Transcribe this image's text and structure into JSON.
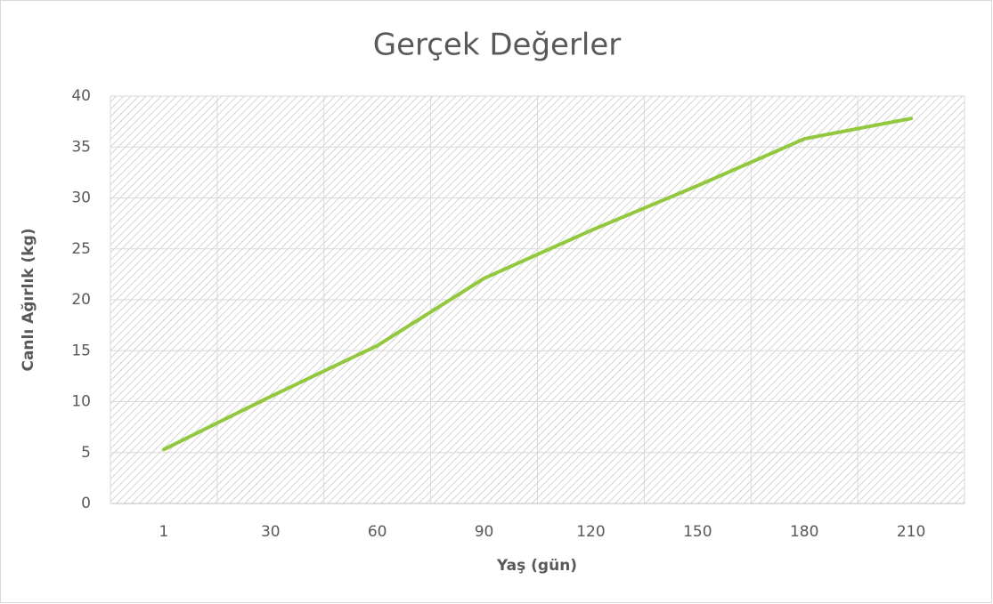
{
  "chart_data": {
    "type": "line",
    "title": "Gerçek Değerler",
    "x_label": "Yaş (gün)",
    "y_label": "Canlı Ağırlık (kg)",
    "categories": [
      "1",
      "30",
      "60",
      "90",
      "120",
      "150",
      "180",
      "210"
    ],
    "values": [
      5.3,
      10.5,
      15.5,
      22.1,
      26.8,
      31.2,
      35.8,
      37.8
    ],
    "color": "#92c83e",
    "ylim": [
      0,
      40
    ],
    "yticks": [
      0,
      5,
      10,
      15,
      20,
      25,
      30,
      35,
      40
    ],
    "grid": true
  }
}
